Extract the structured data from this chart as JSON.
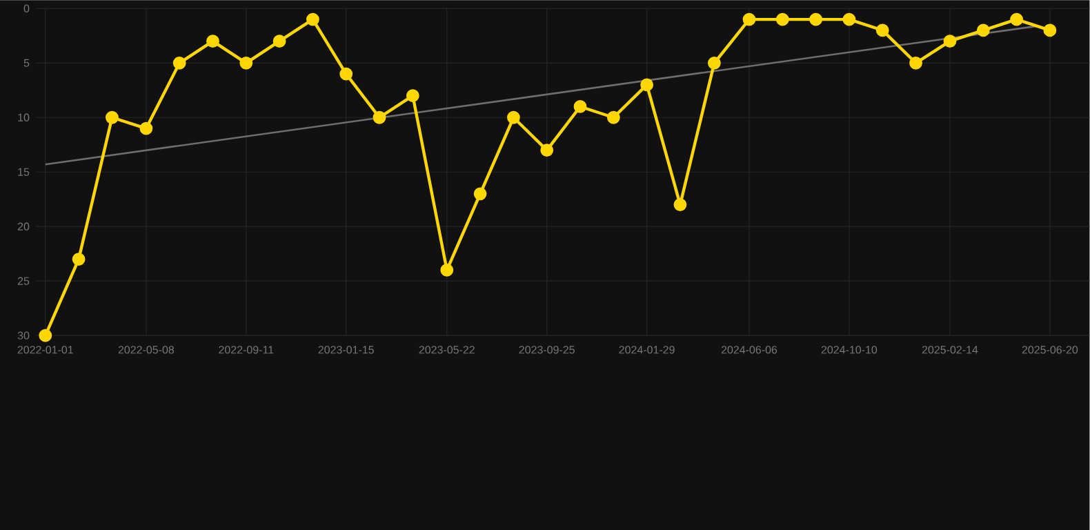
{
  "chart_data": {
    "type": "line",
    "x": [
      "2022-01-01",
      "2022-02-12",
      "2022-03-26",
      "2022-05-08",
      "2022-06-19",
      "2022-07-31",
      "2022-09-11",
      "2022-10-23",
      "2022-12-04",
      "2023-01-15",
      "2023-02-26",
      "2023-04-09",
      "2023-05-22",
      "2023-07-03",
      "2023-08-14",
      "2023-09-25",
      "2023-11-06",
      "2023-12-18",
      "2024-01-29",
      "2024-03-11",
      "2024-04-23",
      "2024-06-06",
      "2024-07-18",
      "2024-08-29",
      "2024-10-10",
      "2024-11-21",
      "2025-01-02",
      "2025-02-14",
      "2025-03-28",
      "2025-05-09",
      "2025-06-20"
    ],
    "series": [
      {
        "color": "#ffd700",
        "marker": "circle",
        "values": [
          30,
          23,
          10,
          11,
          5,
          3,
          5,
          3,
          1,
          6,
          10,
          8,
          24,
          17,
          10,
          13,
          9,
          10,
          7,
          18,
          5,
          1,
          1,
          1,
          1,
          2,
          5,
          3,
          2,
          1,
          2
        ]
      },
      {
        "type": "line",
        "color": "#6e6e6e",
        "marker": "none",
        "x": [
          "2022-01-01",
          "2025-06-05"
        ],
        "values": [
          14.3,
          1.6
        ]
      }
    ],
    "xlim": [
      "2021-12-20",
      "2025-08-09"
    ],
    "xticks": [
      "2022-01-01",
      "2022-05-08",
      "2022-09-11",
      "2023-01-15",
      "2023-05-22",
      "2023-09-25",
      "2024-01-29",
      "2024-06-06",
      "2024-10-10",
      "2025-02-14",
      "2025-06-20"
    ],
    "ylim": [
      30,
      0
    ],
    "yticks": [
      0,
      5,
      10,
      15,
      20,
      25,
      30
    ],
    "grid": true
  }
}
